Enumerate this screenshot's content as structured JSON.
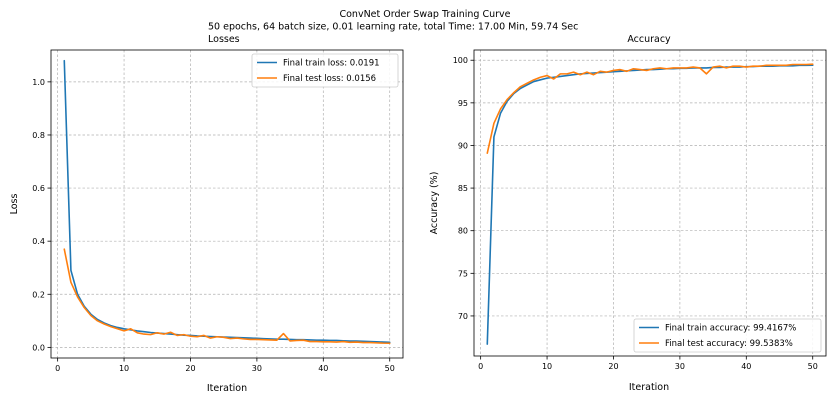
{
  "figure": {
    "title_line1": "ConvNet Order Swap Training Curve",
    "title_line2": "50 epochs, 64 batch size,  0.01 learning rate, total Time: 17.00 Min, 59.74 Sec"
  },
  "colors": {
    "train": "#1f77b4",
    "test": "#ff7f0e"
  },
  "chart_data": [
    {
      "type": "line",
      "title": "Losses",
      "xlabel": "Iteration",
      "ylabel": "Loss",
      "xlim": [
        -1,
        52
      ],
      "ylim": [
        -0.04,
        1.12
      ],
      "xticks": [
        0,
        10,
        20,
        30,
        40,
        50
      ],
      "yticks": [
        0.0,
        0.2,
        0.4,
        0.6,
        0.8,
        1.0
      ],
      "ytick_labels": [
        "0.0",
        "0.2",
        "0.4",
        "0.6",
        "0.8",
        "1.0"
      ],
      "grid": true,
      "legend_position": "top-right",
      "x": [
        1,
        2,
        3,
        4,
        5,
        6,
        7,
        8,
        9,
        10,
        11,
        12,
        13,
        14,
        15,
        16,
        17,
        18,
        19,
        20,
        21,
        22,
        23,
        24,
        25,
        26,
        27,
        28,
        29,
        30,
        31,
        32,
        33,
        34,
        35,
        36,
        37,
        38,
        39,
        40,
        41,
        42,
        43,
        44,
        45,
        46,
        47,
        48,
        49,
        50
      ],
      "series": [
        {
          "name": "Final train loss: 0.0191",
          "color": "#1f77b4",
          "values": [
            1.08,
            0.29,
            0.2,
            0.155,
            0.125,
            0.105,
            0.092,
            0.082,
            0.075,
            0.07,
            0.066,
            0.062,
            0.059,
            0.056,
            0.054,
            0.052,
            0.05,
            0.048,
            0.046,
            0.045,
            0.043,
            0.042,
            0.041,
            0.04,
            0.039,
            0.038,
            0.037,
            0.036,
            0.035,
            0.034,
            0.033,
            0.032,
            0.031,
            0.031,
            0.03,
            0.029,
            0.029,
            0.028,
            0.027,
            0.027,
            0.026,
            0.026,
            0.025,
            0.024,
            0.024,
            0.023,
            0.022,
            0.021,
            0.02,
            0.0191
          ]
        },
        {
          "name": "Final test loss: 0.0156",
          "color": "#ff7f0e",
          "values": [
            0.37,
            0.245,
            0.19,
            0.15,
            0.12,
            0.1,
            0.088,
            0.078,
            0.07,
            0.062,
            0.07,
            0.055,
            0.05,
            0.048,
            0.055,
            0.05,
            0.057,
            0.045,
            0.048,
            0.042,
            0.04,
            0.045,
            0.035,
            0.04,
            0.038,
            0.033,
            0.035,
            0.032,
            0.03,
            0.03,
            0.029,
            0.028,
            0.027,
            0.052,
            0.024,
            0.026,
            0.027,
            0.022,
            0.022,
            0.021,
            0.021,
            0.02,
            0.022,
            0.019,
            0.02,
            0.018,
            0.018,
            0.017,
            0.016,
            0.0156
          ]
        }
      ]
    },
    {
      "type": "line",
      "title": "Accuracy",
      "xlabel": "Iteration",
      "ylabel": "Accuracy (%)",
      "xlim": [
        -1,
        52
      ],
      "ylim": [
        65.3,
        101.2
      ],
      "xticks": [
        0,
        10,
        20,
        30,
        40,
        50
      ],
      "yticks": [
        70,
        75,
        80,
        85,
        90,
        95,
        100
      ],
      "ytick_labels": [
        "70",
        "75",
        "80",
        "85",
        "90",
        "95",
        "100"
      ],
      "grid": true,
      "legend_position": "bottom-right",
      "x": [
        1,
        2,
        3,
        4,
        5,
        6,
        7,
        8,
        9,
        10,
        11,
        12,
        13,
        14,
        15,
        16,
        17,
        18,
        19,
        20,
        21,
        22,
        23,
        24,
        25,
        26,
        27,
        28,
        29,
        30,
        31,
        32,
        33,
        34,
        35,
        36,
        37,
        38,
        39,
        40,
        41,
        42,
        43,
        44,
        45,
        46,
        47,
        48,
        49,
        50
      ],
      "series": [
        {
          "name": "Final train accuracy: 99.4167%",
          "color": "#1f77b4",
          "values": [
            66.7,
            91.0,
            93.8,
            95.2,
            96.1,
            96.7,
            97.1,
            97.5,
            97.7,
            97.9,
            98.0,
            98.1,
            98.2,
            98.3,
            98.4,
            98.45,
            98.5,
            98.55,
            98.6,
            98.65,
            98.7,
            98.75,
            98.8,
            98.85,
            98.9,
            98.9,
            98.95,
            99.0,
            99.0,
            99.05,
            99.05,
            99.1,
            99.1,
            99.1,
            99.15,
            99.15,
            99.2,
            99.2,
            99.2,
            99.25,
            99.25,
            99.3,
            99.3,
            99.3,
            99.35,
            99.35,
            99.35,
            99.4,
            99.4,
            99.4167
          ]
        },
        {
          "name": "Final test accuracy: 99.5383%",
          "color": "#ff7f0e",
          "values": [
            89.1,
            92.6,
            94.3,
            95.4,
            96.2,
            96.9,
            97.3,
            97.7,
            98.0,
            98.2,
            97.8,
            98.4,
            98.4,
            98.6,
            98.3,
            98.6,
            98.3,
            98.7,
            98.6,
            98.8,
            98.9,
            98.7,
            99.0,
            98.9,
            98.8,
            99.0,
            99.1,
            99.0,
            99.1,
            99.1,
            99.1,
            99.2,
            99.1,
            98.4,
            99.2,
            99.3,
            99.1,
            99.3,
            99.3,
            99.2,
            99.3,
            99.3,
            99.4,
            99.4,
            99.4,
            99.4,
            99.5,
            99.5,
            99.5,
            99.5383
          ]
        }
      ]
    }
  ]
}
